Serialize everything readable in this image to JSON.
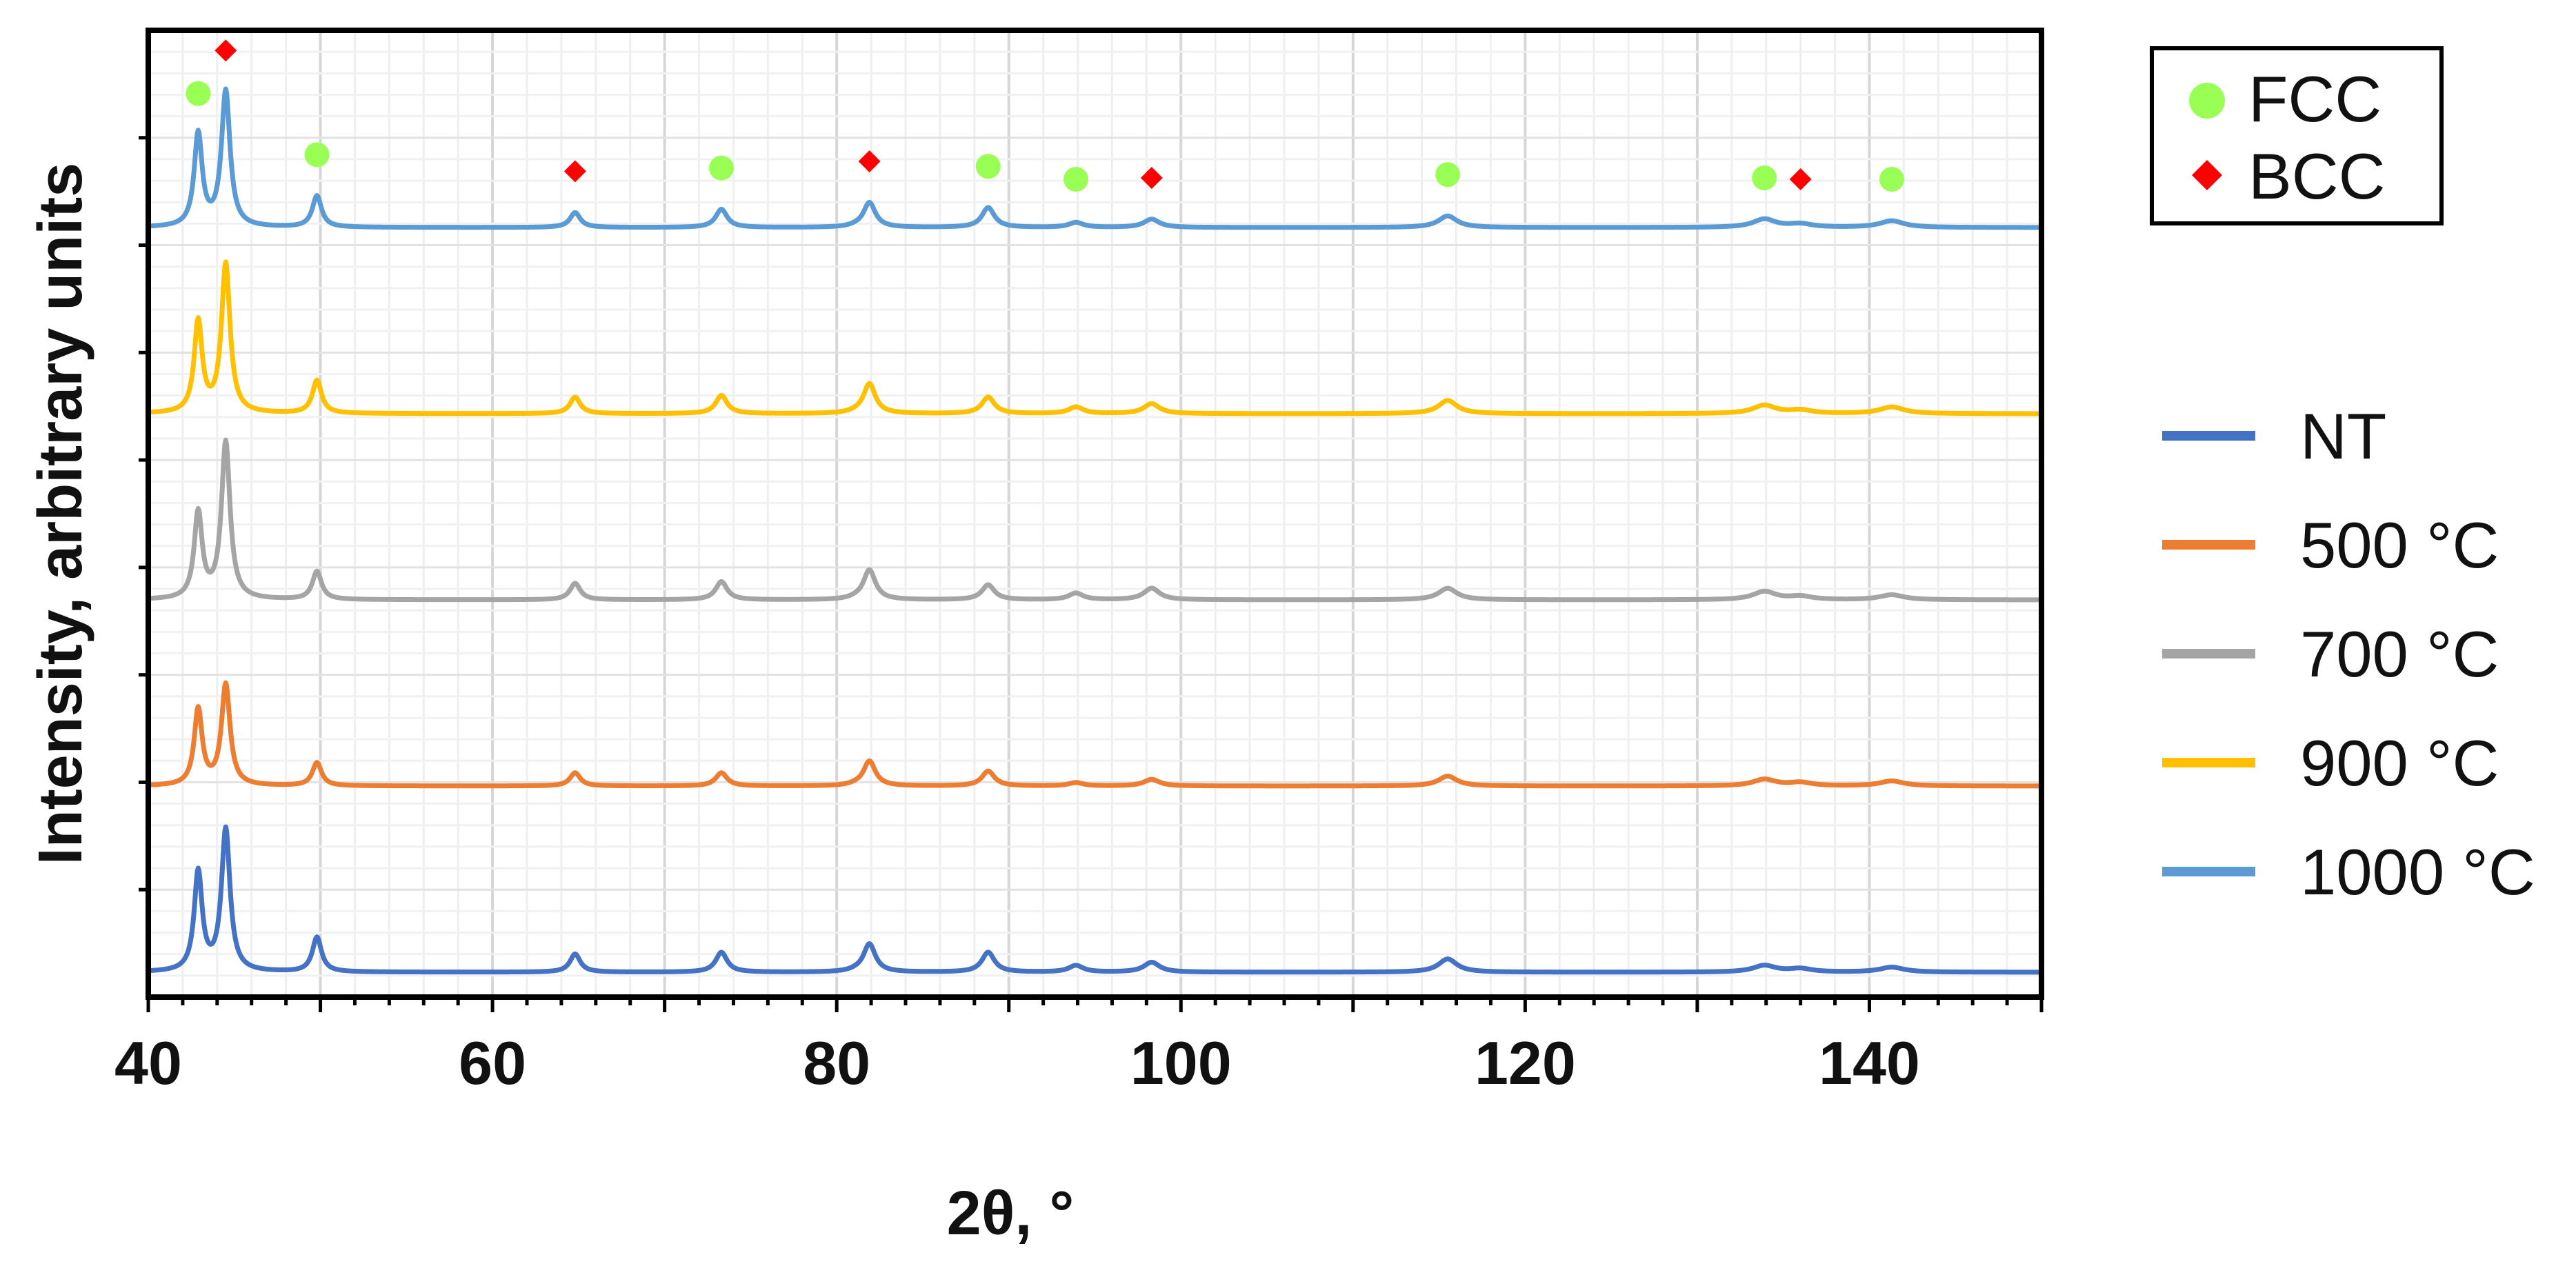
{
  "chart_data": {
    "type": "line",
    "title": "",
    "xlabel": "2θ, °",
    "ylabel": "Intensity, arbitrary units",
    "xlim": [
      40,
      150
    ],
    "xticks": [
      40,
      60,
      80,
      100,
      120,
      140
    ],
    "grid": true,
    "stacked_with_vertical_offsets": true,
    "peak_positions_2theta": [
      42.9,
      44.5,
      49.8,
      64.8,
      73.3,
      81.9,
      88.8,
      93.9,
      98.3,
      115.5,
      133.9,
      136.0,
      141.3
    ],
    "series": [
      {
        "name": "NT",
        "color": "#4472C4",
        "peak_heights": [
          0.6,
          0.86,
          0.21,
          0.11,
          0.12,
          0.17,
          0.12,
          0.04,
          0.06,
          0.08,
          0.04,
          0.02,
          0.03
        ]
      },
      {
        "name": "500 °C",
        "color": "#ED7D31",
        "peak_heights": [
          0.46,
          0.61,
          0.14,
          0.08,
          0.08,
          0.15,
          0.09,
          0.02,
          0.04,
          0.06,
          0.04,
          0.02,
          0.03
        ]
      },
      {
        "name": "700 °C",
        "color": "#A5A5A5",
        "peak_heights": [
          0.52,
          0.95,
          0.17,
          0.1,
          0.11,
          0.18,
          0.09,
          0.04,
          0.07,
          0.07,
          0.05,
          0.02,
          0.03
        ]
      },
      {
        "name": "900 °C",
        "color": "#FFC000",
        "peak_heights": [
          0.55,
          0.9,
          0.2,
          0.1,
          0.11,
          0.18,
          0.1,
          0.04,
          0.06,
          0.08,
          0.05,
          0.02,
          0.04
        ]
      },
      {
        "name": "1000 °C",
        "color": "#5B9BD5",
        "peak_heights": [
          0.56,
          0.82,
          0.19,
          0.09,
          0.11,
          0.15,
          0.12,
          0.03,
          0.05,
          0.07,
          0.05,
          0.02,
          0.04
        ]
      }
    ],
    "phase_markers": [
      {
        "phase": "FCC",
        "color": "#99FF55",
        "shape": "circle",
        "positions": [
          42.9,
          49.8,
          73.3,
          88.8,
          93.9,
          115.5,
          133.9,
          141.3
        ]
      },
      {
        "phase": "BCC",
        "color": "#FF0000",
        "shape": "diamond",
        "positions": [
          44.5,
          64.8,
          81.9,
          98.3,
          136.0
        ]
      }
    ],
    "phase_legend": [
      "FCC",
      "BCC"
    ],
    "series_legend": [
      "NT",
      "500 °C",
      "700 °C",
      "900 °C",
      "1000 °C"
    ],
    "legend_position": "right"
  }
}
